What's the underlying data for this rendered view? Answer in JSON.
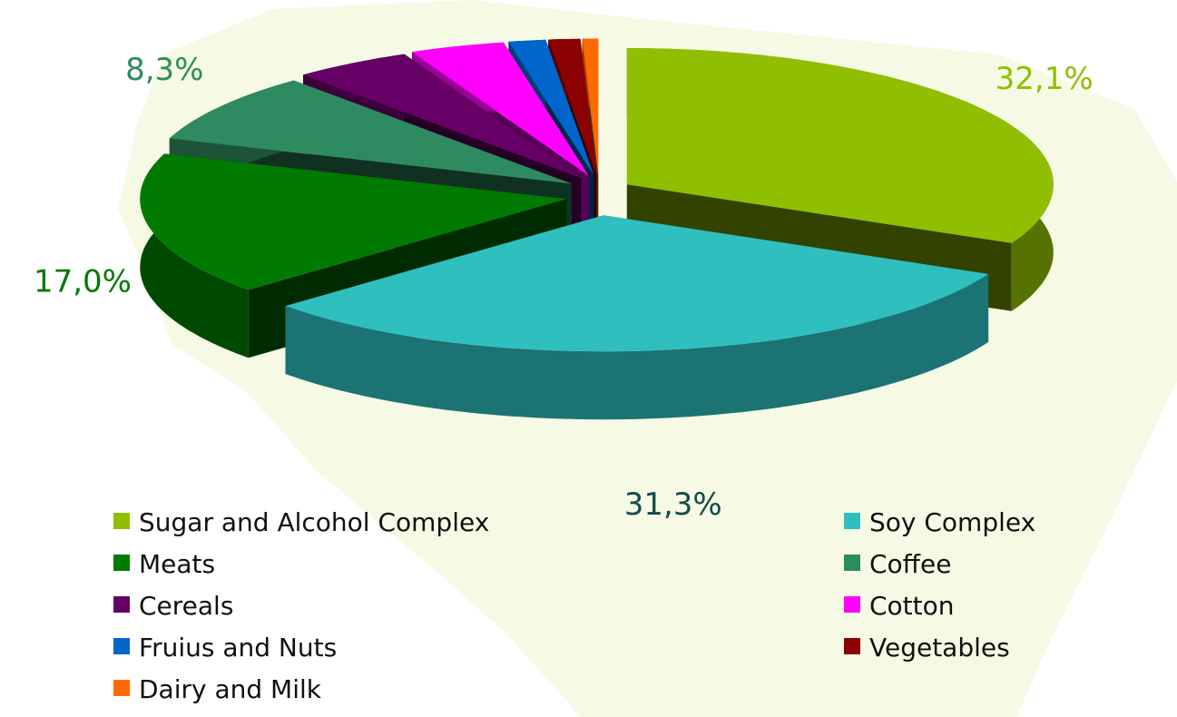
{
  "chart_data": {
    "type": "pie3d",
    "categories": [
      "Sugar and Alcohol Complex",
      "Soy Complex",
      "Meats",
      "Coffee",
      "Cereals",
      "Cotton",
      "Fruius and Nuts",
      "Vegetables",
      "Dairy and Milk"
    ],
    "values": [
      32.1,
      31.3,
      17.0,
      8.3,
      4.5,
      3.6,
      1.4,
      1.2,
      0.6
    ],
    "value_labels": [
      "32,1%",
      "31,3%",
      "17,0%",
      "8,3%",
      null,
      null,
      null,
      null,
      null
    ],
    "colors": [
      "#8fbf00",
      "#2fbfbf",
      "#007a00",
      "#2e8b5f",
      "#660066",
      "#ff00ff",
      "#0066cc",
      "#8b0000",
      "#ff6a00"
    ],
    "legend": "bottom"
  }
}
